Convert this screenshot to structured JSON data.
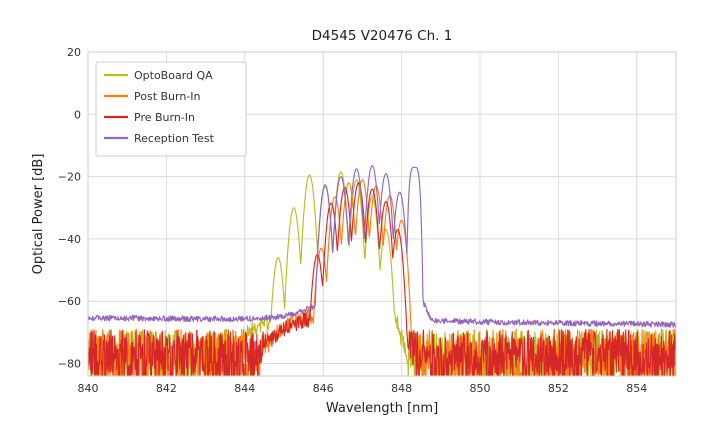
{
  "figure": {
    "background": "#ffffff",
    "grid_color": "#dcdcdc",
    "border_color": "#cccccc"
  },
  "chart_data": {
    "type": "line",
    "title": "D4545 V20476 Ch. 1",
    "xlabel": "Wavelength [nm]",
    "ylabel": "Optical Power [dB]",
    "xlim": [
      840,
      855
    ],
    "ylim": [
      -84,
      20
    ],
    "xticks": [
      840,
      842,
      844,
      846,
      848,
      850,
      852,
      854
    ],
    "yticks": [
      20,
      0,
      -20,
      -40,
      -60,
      -80
    ],
    "grid": true,
    "legend_position": "upper left",
    "series": [
      {
        "name": "OptoBoard QA",
        "color": "#bcbd22",
        "noise_band": [
          -87,
          -69
        ],
        "pedestal": [
          [
            843.6,
            -79
          ],
          [
            844.0,
            -71
          ],
          [
            844.35,
            -67.5
          ],
          [
            844.8,
            -66
          ],
          [
            845.1,
            -64.5
          ],
          [
            847.85,
            -64.5
          ],
          [
            848.0,
            -73
          ],
          [
            848.15,
            -80
          ]
        ],
        "pedestal_noise": 2.5,
        "peaks": [
          [
            844.85,
            -46
          ],
          [
            845.25,
            -30
          ],
          [
            845.65,
            -19.5
          ],
          [
            846.05,
            -22.5
          ],
          [
            846.45,
            -18.5
          ],
          [
            846.85,
            -21
          ],
          [
            847.25,
            -26.5
          ],
          [
            847.6,
            -37
          ]
        ],
        "peak_width_nm": 0.13
      },
      {
        "name": "Post Burn-In",
        "color": "#ff7f0e",
        "noise_band": [
          -87,
          -69
        ],
        "pedestal": [
          [
            844.4,
            -78
          ],
          [
            844.8,
            -70
          ],
          [
            845.2,
            -67
          ],
          [
            845.6,
            -65
          ],
          [
            848.05,
            -65
          ],
          [
            848.2,
            -74
          ],
          [
            848.35,
            -80
          ]
        ],
        "pedestal_noise": 2.5,
        "peaks": [
          [
            845.95,
            -43
          ],
          [
            846.3,
            -26.5
          ],
          [
            846.65,
            -22
          ],
          [
            847.0,
            -21
          ],
          [
            847.35,
            -23
          ],
          [
            847.7,
            -26
          ],
          [
            848.0,
            -34
          ]
        ],
        "peak_width_nm": 0.13
      },
      {
        "name": "Pre Burn-In",
        "color": "#d62728",
        "noise_band": [
          -87,
          -69
        ],
        "pedestal": [
          [
            844.35,
            -79
          ],
          [
            844.75,
            -71
          ],
          [
            845.15,
            -68
          ],
          [
            845.55,
            -66
          ],
          [
            847.95,
            -65.5
          ],
          [
            848.1,
            -75
          ],
          [
            848.25,
            -80
          ]
        ],
        "pedestal_noise": 2.5,
        "peaks": [
          [
            845.85,
            -45
          ],
          [
            846.2,
            -28.5
          ],
          [
            846.55,
            -23.5
          ],
          [
            846.9,
            -22
          ],
          [
            847.25,
            -24
          ],
          [
            847.6,
            -28
          ],
          [
            847.9,
            -37
          ]
        ],
        "peak_width_nm": 0.13
      },
      {
        "name": "Reception Test",
        "color": "#9467bd",
        "pedestal": [
          [
            840,
            -65.3
          ],
          [
            841.5,
            -65.5
          ],
          [
            843,
            -65.7
          ],
          [
            844.3,
            -65.6
          ],
          [
            844.9,
            -65
          ],
          [
            845.4,
            -63.5
          ],
          [
            845.8,
            -61.5
          ],
          [
            846.0,
            -59
          ],
          [
            848.5,
            -59
          ],
          [
            848.62,
            -62
          ],
          [
            848.75,
            -66.2
          ],
          [
            850,
            -66.6
          ],
          [
            852,
            -67
          ],
          [
            854,
            -67.3
          ],
          [
            855,
            -67.5
          ]
        ],
        "pedestal_noise": 0.9,
        "peaks": [
          [
            846.05,
            -23
          ],
          [
            846.45,
            -20
          ],
          [
            846.85,
            -17.5
          ],
          [
            847.25,
            -16.5
          ],
          [
            847.6,
            -19
          ],
          [
            847.95,
            -25
          ],
          [
            848.33,
            -17,
            0.15,
            4
          ]
        ],
        "peak_width_nm": 0.13
      }
    ]
  }
}
